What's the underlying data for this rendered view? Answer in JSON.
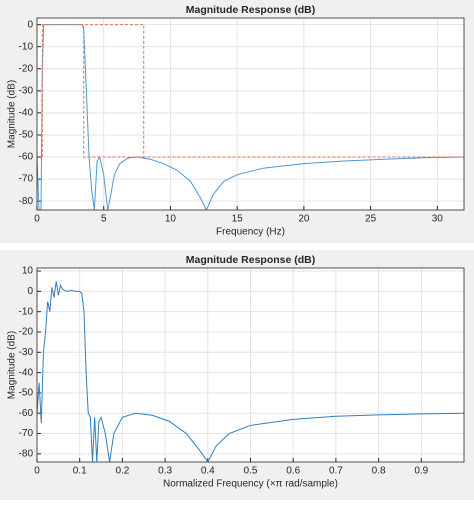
{
  "chart_data": [
    {
      "type": "line",
      "title": "Magnitude Response (dB)",
      "x_label": "Frequency (Hz)",
      "y_label": "Magnitude (dB)",
      "xlim": [
        0,
        32
      ],
      "ylim": [
        -84,
        3
      ],
      "xticks": [
        0,
        5,
        10,
        15,
        20,
        25,
        30
      ],
      "yticks": [
        0,
        -10,
        -20,
        -30,
        -40,
        -50,
        -60,
        -70,
        -80
      ],
      "grid": true,
      "series": [
        {
          "color": "#4a9ad4",
          "linestyle": "solid",
          "x": [
            0,
            0.15,
            0.3,
            0.4,
            0.5,
            3.4,
            3.5,
            3.7,
            3.9,
            4.1,
            4.3,
            4.5,
            4.7,
            5.0,
            5.3,
            5.5,
            5.8,
            6.2,
            6.8,
            7.5,
            8.5,
            9.5,
            10.5,
            11.5,
            12.2,
            12.7,
            13.2,
            14,
            15,
            17,
            20,
            23,
            26,
            29,
            32
          ],
          "values": [
            -60,
            -84,
            -84,
            -20,
            0,
            0,
            -2,
            -30,
            -60,
            -75,
            -84,
            -62,
            -60,
            -68,
            -84,
            -78,
            -68,
            -63,
            -60.5,
            -60,
            -61,
            -63,
            -66,
            -71,
            -78,
            -84,
            -77,
            -71,
            -68,
            -65,
            -63,
            -61.8,
            -61,
            -60.3,
            -60
          ]
        },
        {
          "color": "#e8704a",
          "linestyle": "dashed",
          "x": [
            0.4,
            0.4,
            8,
            8,
            32,
            32,
            3.5,
            3.5
          ],
          "values": [
            -60,
            0,
            0,
            -60,
            -60,
            -60,
            -60,
            0
          ]
        }
      ]
    },
    {
      "type": "line",
      "title": "Magnitude Response (dB)",
      "x_label": "Normalized Frequency (×π rad/sample)",
      "y_label": "Magnitude (dB)",
      "xlim": [
        0,
        1
      ],
      "ylim": [
        -84,
        11.5
      ],
      "xticks": [
        0,
        0.1,
        0.2,
        0.3,
        0.4,
        0.5,
        0.6,
        0.7,
        0.8,
        0.9
      ],
      "yticks": [
        10,
        0,
        -10,
        -20,
        -30,
        -40,
        -50,
        -60,
        -70,
        -80
      ],
      "grid": true,
      "series": [
        {
          "color": "#2f7fc1",
          "linestyle": "solid",
          "x": [
            0,
            0.005,
            0.01,
            0.015,
            0.02,
            0.025,
            0.03,
            0.035,
            0.04,
            0.045,
            0.05,
            0.055,
            0.06,
            0.07,
            0.08,
            0.09,
            0.1,
            0.105,
            0.11,
            0.115,
            0.12,
            0.125,
            0.13,
            0.135,
            0.14,
            0.145,
            0.15,
            0.16,
            0.17,
            0.18,
            0.2,
            0.23,
            0.27,
            0.31,
            0.35,
            0.38,
            0.4,
            0.42,
            0.45,
            0.5,
            0.6,
            0.7,
            0.8,
            0.9,
            1.0
          ],
          "values": [
            -60,
            -45,
            -65,
            -30,
            -20,
            -5,
            -10,
            2,
            -3,
            5,
            -2,
            3,
            1,
            0,
            0.5,
            0,
            0,
            -1,
            -10,
            -40,
            -60,
            -62,
            -84,
            -62,
            -84,
            -64,
            -62,
            -70,
            -84,
            -70,
            -62,
            -60,
            -61,
            -64,
            -70,
            -78,
            -84,
            -76,
            -70,
            -66,
            -63,
            -61.5,
            -60.8,
            -60.3,
            -60
          ]
        }
      ]
    }
  ]
}
